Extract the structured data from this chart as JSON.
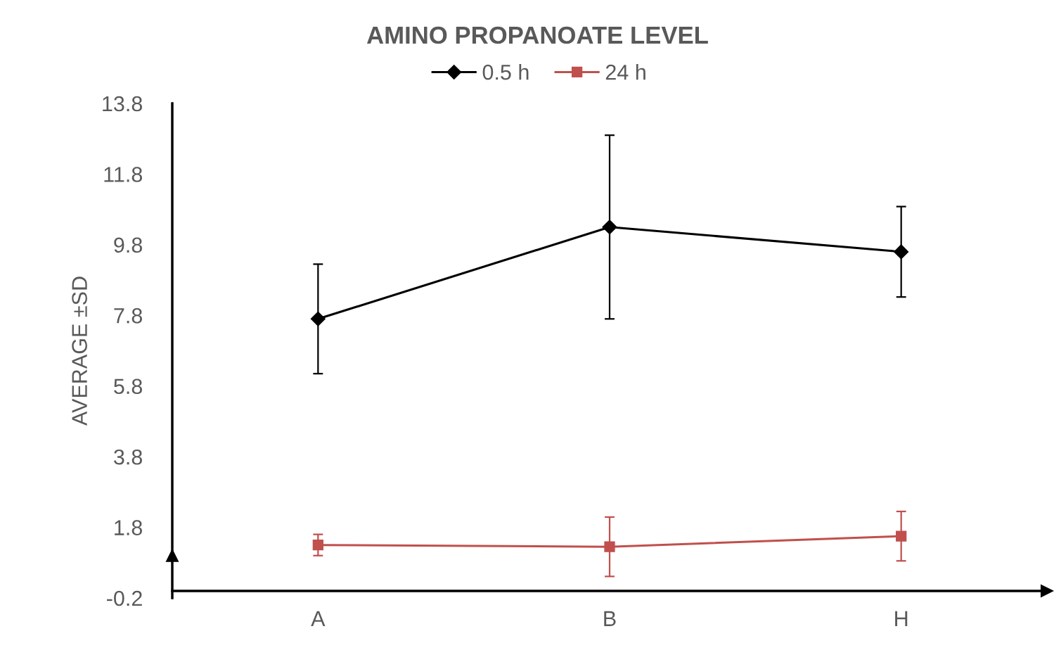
{
  "chart_data": {
    "type": "line",
    "title": "AMINO PROPANOATE LEVEL",
    "ylabel": "AVERAGE ±SD",
    "categories": [
      "A",
      "B",
      "H"
    ],
    "series": [
      {
        "name": "0.5 h",
        "color": "#000000",
        "marker": "diamond",
        "values": [
          7.7,
          10.3,
          9.6
        ],
        "errors": [
          1.55,
          2.6,
          1.28
        ]
      },
      {
        "name": "24 h",
        "color": "#c0504d",
        "marker": "square",
        "values": [
          1.3,
          1.25,
          1.55
        ],
        "errors": [
          0.3,
          0.84,
          0.7
        ]
      }
    ],
    "ylim": [
      -0.2,
      13.8
    ],
    "yticks": [
      -0.2,
      1.8,
      3.8,
      5.8,
      7.8,
      9.8,
      11.8,
      13.8
    ],
    "grid": false,
    "legend": "top",
    "line_style": "solid"
  }
}
